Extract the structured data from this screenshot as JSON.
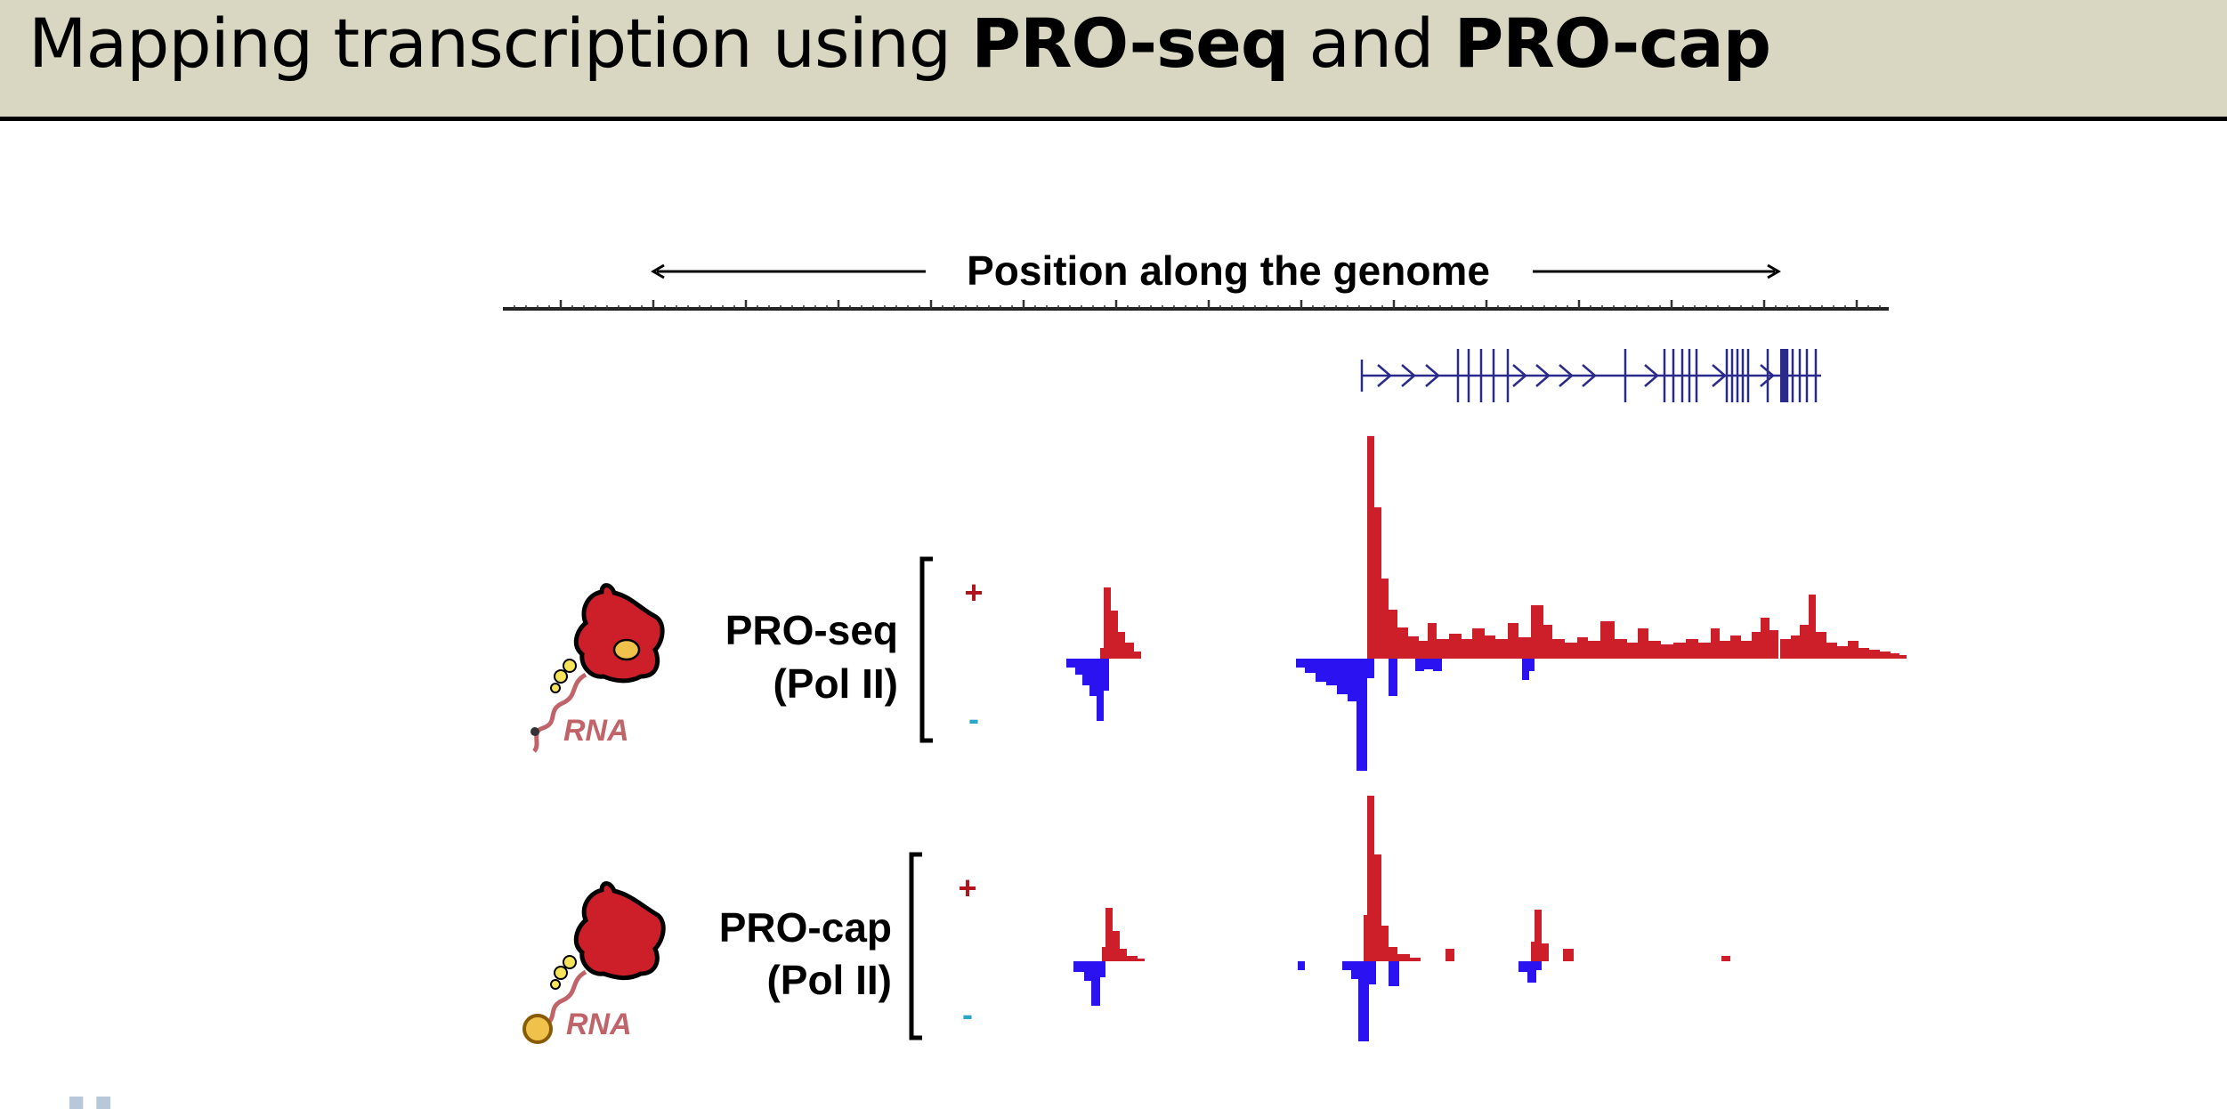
{
  "slide": {
    "title_part1": "Mapping transcription using ",
    "title_bold1": "PRO-seq",
    "title_part2": " and ",
    "title_bold2": "PRO-cap"
  },
  "diagram": {
    "genome_axis_label": "Position along the genome",
    "gene_model_icon": "gene-model-arrows-and-exons",
    "tracks": [
      {
        "name_line1": "PRO-seq",
        "name_line2": "(Pol II)",
        "plus_label": "+",
        "minus_label": "-",
        "cartoon_rna_label": "RNA",
        "cartoon_icon": "polymerase-with-rna-icon"
      },
      {
        "name_line1": "PRO-cap",
        "name_line2": "(Pol II)",
        "plus_label": "+",
        "minus_label": "-",
        "cartoon_rna_label": "RNA",
        "cartoon_icon": "polymerase-with-capped-rna-icon"
      }
    ]
  },
  "colors": {
    "title_bar_bg": "#d9d6c2",
    "plus_strand": "#cc1f2a",
    "minus_strand": "#2b12f0",
    "gene_model": "#2a2a8c",
    "minus_label": "#2aa6c8",
    "plus_label": "#b0141d",
    "rna_label": "#c0646a"
  }
}
